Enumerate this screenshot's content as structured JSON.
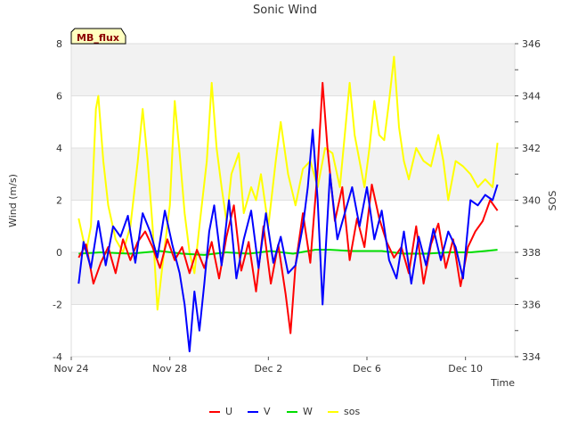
{
  "chart_data": {
    "type": "line",
    "title": "Sonic Wind",
    "xlabel": "Time",
    "ylabel": "Wind (m/s)",
    "y2label": "SOS",
    "badge": "MB_flux",
    "x_domain_days": [
      0,
      18
    ],
    "x_ticks": [
      {
        "day": 0,
        "label": "Nov 24"
      },
      {
        "day": 4,
        "label": "Nov 28"
      },
      {
        "day": 8,
        "label": "Dec 2"
      },
      {
        "day": 12,
        "label": "Dec 6"
      },
      {
        "day": 16,
        "label": "Dec 10"
      }
    ],
    "ylim": [
      -4,
      8
    ],
    "y_ticks": [
      -4,
      -2,
      0,
      2,
      4,
      6,
      8
    ],
    "y2lim": [
      334,
      346
    ],
    "y2_ticks": [
      334,
      336,
      338,
      340,
      342,
      344,
      346
    ],
    "grid": true,
    "legend_position": "bottom-center",
    "series": [
      {
        "name": "U",
        "color": "#ff0000",
        "axis": "left",
        "points": [
          [
            0.3,
            -0.2
          ],
          [
            0.6,
            0.3
          ],
          [
            0.9,
            -1.2
          ],
          [
            1.2,
            -0.4
          ],
          [
            1.5,
            0.2
          ],
          [
            1.8,
            -0.8
          ],
          [
            2.1,
            0.5
          ],
          [
            2.4,
            -0.3
          ],
          [
            2.7,
            0.4
          ],
          [
            3.0,
            0.8
          ],
          [
            3.3,
            0.2
          ],
          [
            3.6,
            -0.6
          ],
          [
            3.9,
            0.5
          ],
          [
            4.2,
            -0.3
          ],
          [
            4.5,
            0.2
          ],
          [
            4.8,
            -0.8
          ],
          [
            5.1,
            0.1
          ],
          [
            5.4,
            -0.6
          ],
          [
            5.7,
            0.4
          ],
          [
            6.0,
            -1.0
          ],
          [
            6.3,
            0.6
          ],
          [
            6.6,
            1.8
          ],
          [
            6.9,
            -0.7
          ],
          [
            7.2,
            0.4
          ],
          [
            7.5,
            -1.5
          ],
          [
            7.8,
            1.0
          ],
          [
            8.1,
            -1.2
          ],
          [
            8.4,
            0.3
          ],
          [
            8.7,
            -1.6
          ],
          [
            8.9,
            -3.1
          ],
          [
            9.1,
            -0.5
          ],
          [
            9.4,
            1.5
          ],
          [
            9.7,
            -0.4
          ],
          [
            10.0,
            3.2
          ],
          [
            10.2,
            6.5
          ],
          [
            10.4,
            4.0
          ],
          [
            10.7,
            1.2
          ],
          [
            11.0,
            2.5
          ],
          [
            11.3,
            -0.3
          ],
          [
            11.6,
            1.3
          ],
          [
            11.9,
            0.2
          ],
          [
            12.2,
            2.6
          ],
          [
            12.5,
            1.3
          ],
          [
            12.8,
            0.4
          ],
          [
            13.1,
            -0.2
          ],
          [
            13.4,
            0.2
          ],
          [
            13.7,
            -0.8
          ],
          [
            14.0,
            1.0
          ],
          [
            14.3,
            -1.2
          ],
          [
            14.6,
            0.3
          ],
          [
            14.9,
            1.1
          ],
          [
            15.2,
            -0.6
          ],
          [
            15.5,
            0.5
          ],
          [
            15.8,
            -1.3
          ],
          [
            16.1,
            0.2
          ],
          [
            16.4,
            0.8
          ],
          [
            16.7,
            1.2
          ],
          [
            17.0,
            2.0
          ],
          [
            17.3,
            1.6
          ]
        ]
      },
      {
        "name": "V",
        "color": "#0000ff",
        "axis": "left",
        "points": [
          [
            0.3,
            -1.2
          ],
          [
            0.5,
            0.4
          ],
          [
            0.8,
            -0.6
          ],
          [
            1.1,
            1.2
          ],
          [
            1.4,
            -0.5
          ],
          [
            1.7,
            1.0
          ],
          [
            2.0,
            0.6
          ],
          [
            2.3,
            1.4
          ],
          [
            2.6,
            -0.4
          ],
          [
            2.9,
            1.5
          ],
          [
            3.2,
            0.8
          ],
          [
            3.5,
            -0.2
          ],
          [
            3.8,
            1.6
          ],
          [
            4.1,
            0.3
          ],
          [
            4.4,
            -0.8
          ],
          [
            4.6,
            -2.0
          ],
          [
            4.8,
            -3.8
          ],
          [
            5.0,
            -1.5
          ],
          [
            5.2,
            -3.0
          ],
          [
            5.4,
            -1.2
          ],
          [
            5.6,
            0.8
          ],
          [
            5.8,
            1.8
          ],
          [
            6.1,
            -0.5
          ],
          [
            6.4,
            2.0
          ],
          [
            6.7,
            -1.0
          ],
          [
            7.0,
            0.5
          ],
          [
            7.3,
            1.6
          ],
          [
            7.6,
            -0.6
          ],
          [
            7.9,
            1.5
          ],
          [
            8.2,
            -0.4
          ],
          [
            8.5,
            0.6
          ],
          [
            8.8,
            -0.8
          ],
          [
            9.1,
            -0.5
          ],
          [
            9.4,
            1.0
          ],
          [
            9.6,
            2.5
          ],
          [
            9.8,
            4.7
          ],
          [
            10.0,
            2.0
          ],
          [
            10.2,
            -2.0
          ],
          [
            10.5,
            3.0
          ],
          [
            10.8,
            0.5
          ],
          [
            11.1,
            1.5
          ],
          [
            11.4,
            2.5
          ],
          [
            11.7,
            1.0
          ],
          [
            12.0,
            2.5
          ],
          [
            12.3,
            0.5
          ],
          [
            12.6,
            1.6
          ],
          [
            12.9,
            -0.3
          ],
          [
            13.2,
            -1.0
          ],
          [
            13.5,
            0.8
          ],
          [
            13.8,
            -1.2
          ],
          [
            14.1,
            0.6
          ],
          [
            14.4,
            -0.5
          ],
          [
            14.7,
            0.9
          ],
          [
            15.0,
            -0.3
          ],
          [
            15.3,
            0.8
          ],
          [
            15.6,
            0.2
          ],
          [
            15.9,
            -1.0
          ],
          [
            16.2,
            2.0
          ],
          [
            16.5,
            1.8
          ],
          [
            16.8,
            2.2
          ],
          [
            17.1,
            2.0
          ],
          [
            17.3,
            2.6
          ]
        ]
      },
      {
        "name": "W",
        "color": "#00dd00",
        "axis": "left",
        "points": [
          [
            0.3,
            -0.05
          ],
          [
            1.2,
            0.0
          ],
          [
            2.4,
            -0.05
          ],
          [
            3.6,
            0.05
          ],
          [
            4.5,
            -0.05
          ],
          [
            5.4,
            -0.1
          ],
          [
            6.3,
            0.0
          ],
          [
            7.2,
            -0.05
          ],
          [
            8.1,
            0.05
          ],
          [
            9.0,
            -0.05
          ],
          [
            9.9,
            0.1
          ],
          [
            10.5,
            0.1
          ],
          [
            11.4,
            0.05
          ],
          [
            12.0,
            0.05
          ],
          [
            12.6,
            0.05
          ],
          [
            13.5,
            -0.05
          ],
          [
            14.4,
            -0.05
          ],
          [
            15.3,
            0.0
          ],
          [
            16.2,
            0.0
          ],
          [
            16.8,
            0.05
          ],
          [
            17.3,
            0.1
          ]
        ]
      },
      {
        "name": "sos",
        "color": "#ffff00",
        "axis": "right",
        "points": [
          [
            0.3,
            339.3
          ],
          [
            0.6,
            338.0
          ],
          [
            0.8,
            339.0
          ],
          [
            1.0,
            343.5
          ],
          [
            1.1,
            344.0
          ],
          [
            1.3,
            341.5
          ],
          [
            1.5,
            339.8
          ],
          [
            1.8,
            338.5
          ],
          [
            2.1,
            338.0
          ],
          [
            2.4,
            339.0
          ],
          [
            2.7,
            341.5
          ],
          [
            2.9,
            343.5
          ],
          [
            3.1,
            341.5
          ],
          [
            3.3,
            339.0
          ],
          [
            3.5,
            335.8
          ],
          [
            3.7,
            337.5
          ],
          [
            4.0,
            339.8
          ],
          [
            4.2,
            343.8
          ],
          [
            4.4,
            341.8
          ],
          [
            4.6,
            339.5
          ],
          [
            4.8,
            338.0
          ],
          [
            5.0,
            337.2
          ],
          [
            5.2,
            339.0
          ],
          [
            5.5,
            341.5
          ],
          [
            5.7,
            344.5
          ],
          [
            5.9,
            342.0
          ],
          [
            6.1,
            340.5
          ],
          [
            6.3,
            339.2
          ],
          [
            6.5,
            341.0
          ],
          [
            6.8,
            341.8
          ],
          [
            7.0,
            339.5
          ],
          [
            7.3,
            340.5
          ],
          [
            7.5,
            340.0
          ],
          [
            7.7,
            341.0
          ],
          [
            8.0,
            339.0
          ],
          [
            8.3,
            341.5
          ],
          [
            8.5,
            343.0
          ],
          [
            8.8,
            341.0
          ],
          [
            9.1,
            339.8
          ],
          [
            9.4,
            341.2
          ],
          [
            9.7,
            341.5
          ],
          [
            10.0,
            340.5
          ],
          [
            10.3,
            342.0
          ],
          [
            10.6,
            341.8
          ],
          [
            10.9,
            340.5
          ],
          [
            11.1,
            342.5
          ],
          [
            11.3,
            344.5
          ],
          [
            11.5,
            342.5
          ],
          [
            11.7,
            341.5
          ],
          [
            11.9,
            340.5
          ],
          [
            12.1,
            342.0
          ],
          [
            12.3,
            343.8
          ],
          [
            12.5,
            342.5
          ],
          [
            12.7,
            342.3
          ],
          [
            12.9,
            343.8
          ],
          [
            13.1,
            345.5
          ],
          [
            13.3,
            342.8
          ],
          [
            13.5,
            341.5
          ],
          [
            13.7,
            340.8
          ],
          [
            14.0,
            342.0
          ],
          [
            14.3,
            341.5
          ],
          [
            14.6,
            341.3
          ],
          [
            14.9,
            342.5
          ],
          [
            15.1,
            341.5
          ],
          [
            15.3,
            340.0
          ],
          [
            15.6,
            341.5
          ],
          [
            15.9,
            341.3
          ],
          [
            16.2,
            341.0
          ],
          [
            16.5,
            340.5
          ],
          [
            16.8,
            340.8
          ],
          [
            17.1,
            340.5
          ],
          [
            17.3,
            342.2
          ]
        ]
      }
    ]
  }
}
